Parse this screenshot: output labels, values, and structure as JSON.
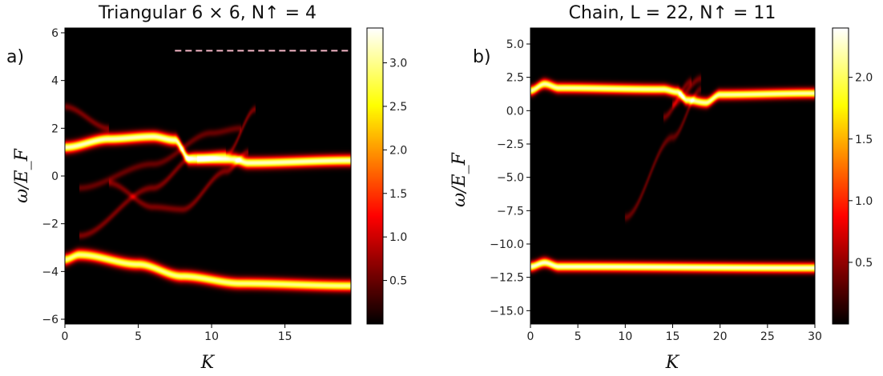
{
  "chart_data": [
    {
      "type": "heatmap",
      "panel_label": "a)",
      "title": "Triangular 6 × 6, N↑ = 4",
      "xlabel": "K",
      "ylabel": "ω/E_F",
      "xlim": [
        0,
        19.5
      ],
      "ylim": [
        -6.2,
        6.2
      ],
      "xticks": [
        0,
        5,
        10,
        15
      ],
      "yticks": [
        6,
        4,
        2,
        0,
        -2,
        -4,
        -6
      ],
      "colormap": "hot",
      "colorbar": {
        "min": 0.0,
        "max": 3.4,
        "ticks": [
          3.0,
          2.5,
          2.0,
          1.5,
          1.0,
          0.5
        ]
      },
      "dashed_line": {
        "y": 5.25,
        "x_from": 7.5,
        "x_to": 19.5,
        "color": "#f4b6c6"
      },
      "bands": [
        {
          "name": "upper",
          "points": [
            [
              0,
              1.2
            ],
            [
              3,
              1.55
            ],
            [
              6,
              1.65
            ],
            [
              7.5,
              1.5
            ],
            [
              8.5,
              0.7
            ],
            [
              11.5,
              0.7
            ],
            [
              12.5,
              0.55
            ],
            [
              19.5,
              0.65
            ]
          ],
          "width": 0.22,
          "amp": 3.2
        },
        {
          "name": "lower",
          "points": [
            [
              0,
              -3.5
            ],
            [
              1,
              -3.3
            ],
            [
              5,
              -3.7
            ],
            [
              8,
              -4.2
            ],
            [
              12,
              -4.5
            ],
            [
              19.5,
              -4.6
            ]
          ],
          "width": 0.22,
          "amp": 3.0
        },
        {
          "name": "ghost1",
          "points": [
            [
              0,
              2.9
            ],
            [
              3,
              2.0
            ]
          ],
          "width": 0.15,
          "amp": 0.6
        },
        {
          "name": "ghost2",
          "points": [
            [
              1,
              -0.5
            ],
            [
              6,
              0.5
            ],
            [
              10,
              1.8
            ],
            [
              12,
              2.0
            ]
          ],
          "width": 0.15,
          "amp": 0.5
        },
        {
          "name": "ghost3",
          "points": [
            [
              1,
              -2.5
            ],
            [
              6,
              -0.5
            ],
            [
              9,
              0.9
            ],
            [
              11,
              1.0
            ]
          ],
          "width": 0.15,
          "amp": 0.6
        },
        {
          "name": "ghost4",
          "points": [
            [
              3,
              -0.3
            ],
            [
              6,
              -1.3
            ],
            [
              8,
              -1.4
            ],
            [
              11,
              0.2
            ],
            [
              12.5,
              1.0
            ]
          ],
          "width": 0.15,
          "amp": 0.6
        },
        {
          "name": "ghost5",
          "points": [
            [
              9,
              0.7
            ],
            [
              11,
              0.9
            ],
            [
              13,
              2.8
            ]
          ],
          "width": 0.15,
          "amp": 0.6
        }
      ]
    },
    {
      "type": "heatmap",
      "panel_label": "b)",
      "title": "Chain, L = 22, N↑ = 11",
      "xlabel": "K",
      "ylabel": "ω/E_F",
      "xlim": [
        0,
        30
      ],
      "ylim": [
        -16,
        6.2
      ],
      "xticks": [
        0,
        5,
        10,
        15,
        20,
        25,
        30
      ],
      "yticks": [
        5.0,
        2.5,
        0.0,
        -2.5,
        -5.0,
        -7.5,
        -10.0,
        -12.5,
        -15.0
      ],
      "colormap": "hot",
      "colorbar": {
        "min": 0.0,
        "max": 2.4,
        "ticks": [
          2.0,
          1.5,
          1.0,
          0.5
        ]
      },
      "bands": [
        {
          "name": "upper",
          "points": [
            [
              0,
              1.5
            ],
            [
              1.5,
              2.0
            ],
            [
              3,
              1.7
            ],
            [
              14,
              1.6
            ],
            [
              15.5,
              1.4
            ],
            [
              16.5,
              0.8
            ],
            [
              18.5,
              0.6
            ],
            [
              20,
              1.2
            ],
            [
              30,
              1.3
            ]
          ],
          "width": 0.35,
          "amp": 2.2
        },
        {
          "name": "lower",
          "points": [
            [
              0,
              -11.7
            ],
            [
              1.5,
              -11.4
            ],
            [
              3,
              -11.7
            ],
            [
              30,
              -11.8
            ]
          ],
          "width": 0.35,
          "amp": 2.3
        },
        {
          "name": "ghost1",
          "points": [
            [
              10,
              -8
            ],
            [
              15,
              -2
            ],
            [
              18,
              1.6
            ]
          ],
          "width": 0.3,
          "amp": 0.35
        },
        {
          "name": "ghost2",
          "points": [
            [
              14,
              -0.5
            ],
            [
              17,
              2.2
            ]
          ],
          "width": 0.3,
          "amp": 0.4
        },
        {
          "name": "ghost3",
          "points": [
            [
              15,
              0.5
            ],
            [
              18,
              2.4
            ]
          ],
          "width": 0.3,
          "amp": 0.4
        }
      ]
    }
  ]
}
